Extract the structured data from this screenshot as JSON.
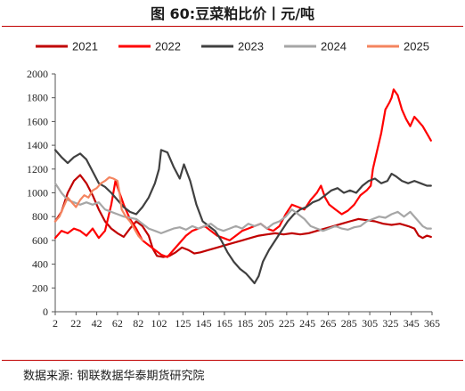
{
  "title": "图 60:豆菜粕比价丨元/吨",
  "source": "数据来源:  钢联数据华泰期货研究院",
  "chart_data": {
    "type": "line",
    "title": "图 60:豆菜粕比价丨元/吨",
    "xlabel": "",
    "ylabel": "",
    "xlim": [
      2,
      365
    ],
    "ylim": [
      0,
      2000
    ],
    "x_ticks": [
      2,
      22,
      42,
      62,
      82,
      102,
      125,
      145,
      165,
      185,
      205,
      225,
      245,
      265,
      285,
      305,
      325,
      345,
      365
    ],
    "y_ticks": [
      0,
      200,
      400,
      600,
      800,
      1000,
      1200,
      1400,
      1600,
      1800,
      2000
    ],
    "grid": false,
    "legend": "top",
    "series": [
      {
        "name": "2021",
        "color": "#c00000",
        "points": [
          [
            2,
            760
          ],
          [
            8,
            840
          ],
          [
            14,
            1000
          ],
          [
            20,
            1100
          ],
          [
            26,
            1150
          ],
          [
            32,
            1080
          ],
          [
            38,
            980
          ],
          [
            44,
            860
          ],
          [
            50,
            760
          ],
          [
            56,
            700
          ],
          [
            62,
            660
          ],
          [
            68,
            630
          ],
          [
            74,
            700
          ],
          [
            80,
            760
          ],
          [
            86,
            720
          ],
          [
            92,
            640
          ],
          [
            96,
            530
          ],
          [
            100,
            470
          ],
          [
            106,
            460
          ],
          [
            112,
            470
          ],
          [
            118,
            500
          ],
          [
            124,
            540
          ],
          [
            130,
            520
          ],
          [
            136,
            490
          ],
          [
            142,
            500
          ],
          [
            150,
            520
          ],
          [
            158,
            540
          ],
          [
            166,
            560
          ],
          [
            174,
            580
          ],
          [
            182,
            600
          ],
          [
            190,
            620
          ],
          [
            198,
            640
          ],
          [
            206,
            650
          ],
          [
            214,
            660
          ],
          [
            222,
            650
          ],
          [
            230,
            660
          ],
          [
            238,
            650
          ],
          [
            246,
            660
          ],
          [
            254,
            680
          ],
          [
            262,
            700
          ],
          [
            270,
            720
          ],
          [
            278,
            740
          ],
          [
            286,
            760
          ],
          [
            294,
            780
          ],
          [
            302,
            770
          ],
          [
            310,
            760
          ],
          [
            318,
            740
          ],
          [
            326,
            730
          ],
          [
            334,
            740
          ],
          [
            342,
            720
          ],
          [
            348,
            700
          ],
          [
            352,
            640
          ],
          [
            356,
            620
          ],
          [
            360,
            640
          ],
          [
            364,
            630
          ]
        ]
      },
      {
        "name": "2022",
        "color": "#ff0000",
        "points": [
          [
            2,
            620
          ],
          [
            8,
            680
          ],
          [
            14,
            660
          ],
          [
            20,
            700
          ],
          [
            26,
            680
          ],
          [
            32,
            640
          ],
          [
            38,
            700
          ],
          [
            44,
            620
          ],
          [
            50,
            680
          ],
          [
            56,
            900
          ],
          [
            60,
            1100
          ],
          [
            64,
            1000
          ],
          [
            68,
            900
          ],
          [
            74,
            780
          ],
          [
            80,
            700
          ],
          [
            86,
            600
          ],
          [
            92,
            560
          ],
          [
            98,
            520
          ],
          [
            104,
            480
          ],
          [
            110,
            460
          ],
          [
            116,
            520
          ],
          [
            122,
            580
          ],
          [
            128,
            640
          ],
          [
            134,
            680
          ],
          [
            140,
            700
          ],
          [
            146,
            720
          ],
          [
            152,
            680
          ],
          [
            158,
            640
          ],
          [
            164,
            620
          ],
          [
            170,
            600
          ],
          [
            176,
            640
          ],
          [
            182,
            680
          ],
          [
            188,
            700
          ],
          [
            194,
            720
          ],
          [
            200,
            740
          ],
          [
            206,
            700
          ],
          [
            212,
            680
          ],
          [
            218,
            720
          ],
          [
            224,
            820
          ],
          [
            230,
            900
          ],
          [
            236,
            880
          ],
          [
            242,
            860
          ],
          [
            248,
            940
          ],
          [
            254,
            1000
          ],
          [
            258,
            1060
          ],
          [
            262,
            960
          ],
          [
            266,
            900
          ],
          [
            272,
            860
          ],
          [
            278,
            820
          ],
          [
            284,
            850
          ],
          [
            290,
            900
          ],
          [
            296,
            980
          ],
          [
            302,
            1020
          ],
          [
            306,
            1060
          ],
          [
            308,
            1200
          ],
          [
            312,
            1350
          ],
          [
            316,
            1500
          ],
          [
            320,
            1700
          ],
          [
            324,
            1760
          ],
          [
            326,
            1800
          ],
          [
            328,
            1870
          ],
          [
            332,
            1820
          ],
          [
            336,
            1700
          ],
          [
            340,
            1620
          ],
          [
            344,
            1560
          ],
          [
            348,
            1640
          ],
          [
            352,
            1600
          ],
          [
            356,
            1560
          ],
          [
            360,
            1500
          ],
          [
            364,
            1440
          ]
        ]
      },
      {
        "name": "2023",
        "color": "#404040",
        "points": [
          [
            2,
            1360
          ],
          [
            8,
            1300
          ],
          [
            14,
            1250
          ],
          [
            20,
            1300
          ],
          [
            26,
            1330
          ],
          [
            32,
            1280
          ],
          [
            38,
            1180
          ],
          [
            44,
            1080
          ],
          [
            50,
            1050
          ],
          [
            56,
            1000
          ],
          [
            62,
            940
          ],
          [
            68,
            880
          ],
          [
            74,
            840
          ],
          [
            80,
            820
          ],
          [
            86,
            880
          ],
          [
            92,
            960
          ],
          [
            98,
            1080
          ],
          [
            102,
            1200
          ],
          [
            104,
            1360
          ],
          [
            110,
            1340
          ],
          [
            116,
            1220
          ],
          [
            122,
            1120
          ],
          [
            126,
            1240
          ],
          [
            132,
            1100
          ],
          [
            138,
            900
          ],
          [
            144,
            760
          ],
          [
            150,
            720
          ],
          [
            156,
            680
          ],
          [
            162,
            600
          ],
          [
            168,
            500
          ],
          [
            174,
            420
          ],
          [
            180,
            360
          ],
          [
            186,
            320
          ],
          [
            190,
            280
          ],
          [
            194,
            240
          ],
          [
            198,
            300
          ],
          [
            202,
            420
          ],
          [
            208,
            520
          ],
          [
            214,
            600
          ],
          [
            220,
            680
          ],
          [
            226,
            760
          ],
          [
            232,
            820
          ],
          [
            238,
            860
          ],
          [
            244,
            880
          ],
          [
            250,
            920
          ],
          [
            256,
            940
          ],
          [
            262,
            980
          ],
          [
            268,
            1020
          ],
          [
            274,
            1040
          ],
          [
            280,
            1000
          ],
          [
            286,
            1020
          ],
          [
            292,
            1000
          ],
          [
            298,
            1060
          ],
          [
            304,
            1100
          ],
          [
            310,
            1120
          ],
          [
            316,
            1080
          ],
          [
            322,
            1100
          ],
          [
            326,
            1160
          ],
          [
            330,
            1140
          ],
          [
            336,
            1100
          ],
          [
            342,
            1080
          ],
          [
            348,
            1100
          ],
          [
            354,
            1080
          ],
          [
            360,
            1060
          ],
          [
            364,
            1060
          ]
        ]
      },
      {
        "name": "2024",
        "color": "#a6a6a6",
        "points": [
          [
            2,
            1080
          ],
          [
            8,
            1000
          ],
          [
            14,
            940
          ],
          [
            20,
            920
          ],
          [
            26,
            900
          ],
          [
            32,
            920
          ],
          [
            38,
            900
          ],
          [
            44,
            920
          ],
          [
            50,
            860
          ],
          [
            56,
            840
          ],
          [
            62,
            820
          ],
          [
            68,
            800
          ],
          [
            74,
            790
          ],
          [
            80,
            780
          ],
          [
            86,
            740
          ],
          [
            92,
            700
          ],
          [
            98,
            680
          ],
          [
            104,
            660
          ],
          [
            110,
            680
          ],
          [
            116,
            700
          ],
          [
            122,
            710
          ],
          [
            128,
            690
          ],
          [
            134,
            720
          ],
          [
            140,
            700
          ],
          [
            146,
            720
          ],
          [
            152,
            740
          ],
          [
            158,
            700
          ],
          [
            164,
            680
          ],
          [
            170,
            700
          ],
          [
            176,
            720
          ],
          [
            182,
            700
          ],
          [
            188,
            740
          ],
          [
            194,
            720
          ],
          [
            200,
            740
          ],
          [
            206,
            700
          ],
          [
            212,
            740
          ],
          [
            218,
            760
          ],
          [
            224,
            800
          ],
          [
            230,
            860
          ],
          [
            236,
            820
          ],
          [
            242,
            780
          ],
          [
            248,
            720
          ],
          [
            254,
            700
          ],
          [
            260,
            680
          ],
          [
            266,
            700
          ],
          [
            272,
            720
          ],
          [
            278,
            700
          ],
          [
            284,
            690
          ],
          [
            290,
            710
          ],
          [
            296,
            720
          ],
          [
            302,
            760
          ],
          [
            308,
            780
          ],
          [
            314,
            800
          ],
          [
            320,
            790
          ],
          [
            326,
            820
          ],
          [
            332,
            840
          ],
          [
            338,
            800
          ],
          [
            344,
            840
          ],
          [
            350,
            780
          ],
          [
            356,
            720
          ],
          [
            360,
            700
          ],
          [
            364,
            700
          ]
        ]
      },
      {
        "name": "2025",
        "color": "#f4845f",
        "points": [
          [
            2,
            760
          ],
          [
            6,
            800
          ],
          [
            10,
            880
          ],
          [
            14,
            960
          ],
          [
            18,
            920
          ],
          [
            22,
            880
          ],
          [
            26,
            940
          ],
          [
            30,
            980
          ],
          [
            34,
            960
          ],
          [
            38,
            1020
          ],
          [
            42,
            1040
          ],
          [
            46,
            1080
          ],
          [
            50,
            1100
          ],
          [
            54,
            1130
          ],
          [
            58,
            1120
          ],
          [
            62,
            1100
          ],
          [
            64,
            1000
          ],
          [
            66,
            860
          ],
          [
            70,
            800
          ],
          [
            74,
            760
          ],
          [
            78,
            700
          ],
          [
            82,
            640
          ],
          [
            86,
            600
          ]
        ]
      }
    ]
  }
}
